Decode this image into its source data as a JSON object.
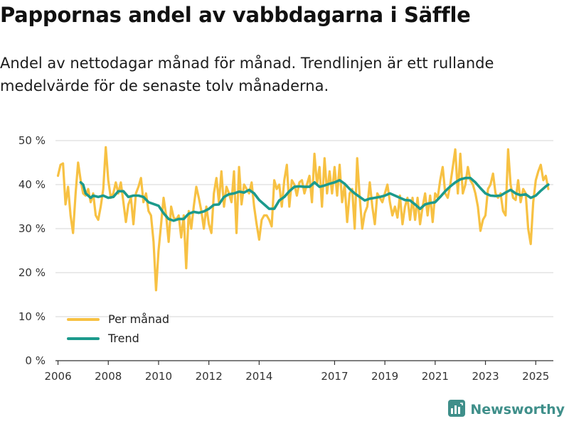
{
  "header": {
    "title": "Pappornas andel av vabbdagarna i Säffle",
    "subtitle": "Andel av nettodagar månad för månad. Trendlinjen är ett rullande medelvärde för de senaste tolv månaderna."
  },
  "brand": {
    "name": "Newsworthy",
    "icon": "newsworthy-logo-icon"
  },
  "colors": {
    "monthly": "#f7c143",
    "trend": "#1c9a8c",
    "grid": "#dddddd",
    "axis": "#333333"
  },
  "chart_data": {
    "type": "line",
    "title": "Pappornas andel av vabbdagarna i Säffle",
    "xlabel": "",
    "ylabel": "",
    "ylim": [
      0,
      50
    ],
    "xlim": [
      2005.9,
      2025.7
    ],
    "y_ticks": [
      0,
      10,
      20,
      30,
      40,
      50
    ],
    "y_tick_labels": [
      "0 %",
      "10 %",
      "20 %",
      "30 %",
      "40 %",
      "50 %"
    ],
    "x_ticks": [
      2006,
      2008,
      2010,
      2012,
      2014,
      2017,
      2019,
      2021,
      2023,
      2025
    ],
    "x_tick_labels": [
      "2006",
      "2008",
      "2010",
      "2012",
      "2014",
      "2017",
      "2019",
      "2021",
      "2023",
      "2025"
    ],
    "legend": {
      "position": "bottom-left",
      "entries": [
        "Per månad",
        "Trend"
      ]
    },
    "series": [
      {
        "name": "Per månad",
        "color": "#f7c143",
        "points": [
          [
            2006.0,
            42
          ],
          [
            2006.1,
            44.5
          ],
          [
            2006.2,
            44.8
          ],
          [
            2006.3,
            35.5
          ],
          [
            2006.4,
            39.5
          ],
          [
            2006.5,
            33
          ],
          [
            2006.6,
            29
          ],
          [
            2006.7,
            38
          ],
          [
            2006.8,
            45
          ],
          [
            2006.9,
            41
          ],
          [
            2007.0,
            38
          ],
          [
            2007.1,
            37.5
          ],
          [
            2007.2,
            39
          ],
          [
            2007.3,
            36
          ],
          [
            2007.4,
            38
          ],
          [
            2007.5,
            33
          ],
          [
            2007.6,
            32
          ],
          [
            2007.7,
            35
          ],
          [
            2007.8,
            39
          ],
          [
            2007.9,
            48.5
          ],
          [
            2008.0,
            41
          ],
          [
            2008.1,
            37
          ],
          [
            2008.2,
            38
          ],
          [
            2008.3,
            40.5
          ],
          [
            2008.4,
            38
          ],
          [
            2008.5,
            40.5
          ],
          [
            2008.6,
            36
          ],
          [
            2008.7,
            31.5
          ],
          [
            2008.8,
            35.5
          ],
          [
            2008.9,
            37
          ],
          [
            2009.0,
            31
          ],
          [
            2009.1,
            38
          ],
          [
            2009.2,
            39.5
          ],
          [
            2009.3,
            41.5
          ],
          [
            2009.4,
            36
          ],
          [
            2009.5,
            38
          ],
          [
            2009.6,
            34
          ],
          [
            2009.7,
            33
          ],
          [
            2009.8,
            27
          ],
          [
            2009.9,
            16
          ],
          [
            2010.0,
            25
          ],
          [
            2010.1,
            31
          ],
          [
            2010.2,
            37
          ],
          [
            2010.3,
            33
          ],
          [
            2010.4,
            27
          ],
          [
            2010.5,
            35
          ],
          [
            2010.6,
            32.5
          ],
          [
            2010.7,
            32
          ],
          [
            2010.8,
            33
          ],
          [
            2010.9,
            28
          ],
          [
            2011.0,
            33
          ],
          [
            2011.1,
            21
          ],
          [
            2011.2,
            34
          ],
          [
            2011.3,
            30
          ],
          [
            2011.4,
            35
          ],
          [
            2011.5,
            39.5
          ],
          [
            2011.6,
            37
          ],
          [
            2011.7,
            34
          ],
          [
            2011.8,
            30
          ],
          [
            2011.9,
            35
          ],
          [
            2012.0,
            31
          ],
          [
            2012.1,
            29
          ],
          [
            2012.2,
            38
          ],
          [
            2012.3,
            41.5
          ],
          [
            2012.4,
            36
          ],
          [
            2012.5,
            43
          ],
          [
            2012.6,
            35
          ],
          [
            2012.7,
            39.5
          ],
          [
            2012.8,
            38
          ],
          [
            2012.9,
            36
          ],
          [
            2013.0,
            43
          ],
          [
            2013.1,
            29
          ],
          [
            2013.2,
            44
          ],
          [
            2013.3,
            35.5
          ],
          [
            2013.4,
            40
          ],
          [
            2013.5,
            39
          ],
          [
            2013.6,
            38
          ],
          [
            2013.7,
            40.5
          ],
          [
            2013.8,
            35
          ],
          [
            2013.9,
            31
          ],
          [
            2014.0,
            27.5
          ],
          [
            2014.1,
            32
          ],
          [
            2014.2,
            33
          ],
          [
            2014.3,
            33
          ],
          [
            2014.4,
            32
          ],
          [
            2014.5,
            30.5
          ],
          [
            2014.6,
            41
          ],
          [
            2014.7,
            39
          ],
          [
            2014.8,
            40
          ],
          [
            2014.9,
            35
          ],
          [
            2015.0,
            41
          ],
          [
            2015.1,
            44.5
          ],
          [
            2015.2,
            35
          ],
          [
            2015.3,
            41
          ],
          [
            2015.4,
            40
          ],
          [
            2015.5,
            37.5
          ],
          [
            2015.6,
            40.5
          ],
          [
            2015.7,
            41
          ],
          [
            2015.8,
            38
          ],
          [
            2015.9,
            40
          ],
          [
            2016.0,
            42
          ],
          [
            2016.1,
            36
          ],
          [
            2016.2,
            47
          ],
          [
            2016.3,
            40
          ],
          [
            2016.4,
            44
          ],
          [
            2016.5,
            35
          ],
          [
            2016.6,
            46
          ],
          [
            2016.7,
            38
          ],
          [
            2016.8,
            43
          ],
          [
            2016.9,
            38
          ],
          [
            2017.0,
            44
          ],
          [
            2017.1,
            37.5
          ],
          [
            2017.2,
            44.5
          ],
          [
            2017.3,
            36
          ],
          [
            2017.4,
            40
          ],
          [
            2017.5,
            31.5
          ],
          [
            2017.6,
            38
          ],
          [
            2017.7,
            39
          ],
          [
            2017.8,
            30
          ],
          [
            2017.9,
            46
          ],
          [
            2018.0,
            37
          ],
          [
            2018.1,
            30
          ],
          [
            2018.2,
            33.5
          ],
          [
            2018.3,
            35
          ],
          [
            2018.4,
            40.5
          ],
          [
            2018.5,
            35
          ],
          [
            2018.6,
            31
          ],
          [
            2018.7,
            38
          ],
          [
            2018.8,
            37
          ],
          [
            2018.9,
            36
          ],
          [
            2019.0,
            38
          ],
          [
            2019.1,
            40
          ],
          [
            2019.2,
            36
          ],
          [
            2019.3,
            33
          ],
          [
            2019.4,
            35
          ],
          [
            2019.5,
            32.5
          ],
          [
            2019.6,
            37.5
          ],
          [
            2019.7,
            31
          ],
          [
            2019.8,
            35
          ],
          [
            2019.9,
            37
          ],
          [
            2020.0,
            32
          ],
          [
            2020.1,
            37
          ],
          [
            2020.2,
            32
          ],
          [
            2020.3,
            37
          ],
          [
            2020.4,
            31
          ],
          [
            2020.5,
            35
          ],
          [
            2020.6,
            38
          ],
          [
            2020.7,
            33
          ],
          [
            2020.8,
            37.5
          ],
          [
            2020.9,
            31.5
          ],
          [
            2021.0,
            38
          ],
          [
            2021.1,
            37
          ],
          [
            2021.2,
            41
          ],
          [
            2021.3,
            44
          ],
          [
            2021.4,
            38
          ],
          [
            2021.5,
            37
          ],
          [
            2021.6,
            40
          ],
          [
            2021.7,
            44
          ],
          [
            2021.8,
            48
          ],
          [
            2021.9,
            38
          ],
          [
            2022.0,
            47
          ],
          [
            2022.1,
            38
          ],
          [
            2022.2,
            40
          ],
          [
            2022.3,
            44
          ],
          [
            2022.4,
            41
          ],
          [
            2022.5,
            40
          ],
          [
            2022.6,
            38
          ],
          [
            2022.7,
            35
          ],
          [
            2022.8,
            29.5
          ],
          [
            2022.9,
            32
          ],
          [
            2023.0,
            33
          ],
          [
            2023.1,
            39
          ],
          [
            2023.2,
            40
          ],
          [
            2023.3,
            42.5
          ],
          [
            2023.4,
            38
          ],
          [
            2023.5,
            37
          ],
          [
            2023.6,
            38
          ],
          [
            2023.7,
            34
          ],
          [
            2023.8,
            33
          ],
          [
            2023.9,
            48
          ],
          [
            2024.0,
            40
          ],
          [
            2024.1,
            37
          ],
          [
            2024.2,
            36.5
          ],
          [
            2024.3,
            41
          ],
          [
            2024.4,
            36
          ],
          [
            2024.5,
            39
          ],
          [
            2024.6,
            38
          ],
          [
            2024.7,
            30
          ],
          [
            2024.8,
            26.5
          ],
          [
            2024.9,
            36
          ],
          [
            2025.0,
            41
          ],
          [
            2025.1,
            43
          ],
          [
            2025.2,
            44.5
          ],
          [
            2025.3,
            41
          ],
          [
            2025.4,
            42
          ],
          [
            2025.5,
            39
          ]
        ]
      },
      {
        "name": "Trend",
        "color": "#1c9a8c",
        "points": [
          [
            2006.9,
            40.5
          ],
          [
            2007.0,
            40
          ],
          [
            2007.1,
            38
          ],
          [
            2007.2,
            37.5
          ],
          [
            2007.3,
            37
          ],
          [
            2007.4,
            37.5
          ],
          [
            2007.6,
            37.2
          ],
          [
            2007.8,
            37.5
          ],
          [
            2008.0,
            37
          ],
          [
            2008.2,
            37.2
          ],
          [
            2008.4,
            38.5
          ],
          [
            2008.6,
            38.5
          ],
          [
            2008.8,
            37.2
          ],
          [
            2009.0,
            37.5
          ],
          [
            2009.2,
            37.5
          ],
          [
            2009.4,
            37.2
          ],
          [
            2009.6,
            36
          ],
          [
            2009.8,
            35.6
          ],
          [
            2010.0,
            35.2
          ],
          [
            2010.2,
            33.5
          ],
          [
            2010.4,
            32.2
          ],
          [
            2010.6,
            31.8
          ],
          [
            2010.8,
            32.2
          ],
          [
            2011.0,
            32.2
          ],
          [
            2011.2,
            33.4
          ],
          [
            2011.4,
            33.8
          ],
          [
            2011.6,
            33.6
          ],
          [
            2011.8,
            33.9
          ],
          [
            2012.0,
            34.5
          ],
          [
            2012.2,
            35.4
          ],
          [
            2012.4,
            35.5
          ],
          [
            2012.6,
            37.2
          ],
          [
            2012.8,
            37.8
          ],
          [
            2013.0,
            38
          ],
          [
            2013.2,
            38.4
          ],
          [
            2013.4,
            38.2
          ],
          [
            2013.6,
            38.8
          ],
          [
            2013.8,
            38
          ],
          [
            2014.0,
            36.5
          ],
          [
            2014.2,
            35.5
          ],
          [
            2014.4,
            34.5
          ],
          [
            2014.6,
            34.5
          ],
          [
            2014.8,
            36.4
          ],
          [
            2015.0,
            37.2
          ],
          [
            2015.2,
            38.5
          ],
          [
            2015.4,
            39.5
          ],
          [
            2015.6,
            39.6
          ],
          [
            2015.8,
            39.5
          ],
          [
            2016.0,
            39.5
          ],
          [
            2016.2,
            40.5
          ],
          [
            2016.4,
            39.5
          ],
          [
            2016.6,
            39.8
          ],
          [
            2016.8,
            40.2
          ],
          [
            2017.0,
            40.5
          ],
          [
            2017.2,
            41
          ],
          [
            2017.4,
            40.2
          ],
          [
            2017.6,
            39
          ],
          [
            2017.8,
            38
          ],
          [
            2018.0,
            37.2
          ],
          [
            2018.2,
            36.4
          ],
          [
            2018.4,
            36.8
          ],
          [
            2018.6,
            37
          ],
          [
            2018.8,
            37.2
          ],
          [
            2019.0,
            37.5
          ],
          [
            2019.2,
            38
          ],
          [
            2019.4,
            37.5
          ],
          [
            2019.6,
            37
          ],
          [
            2019.8,
            36.5
          ],
          [
            2020.0,
            36.4
          ],
          [
            2020.2,
            35.5
          ],
          [
            2020.4,
            34.5
          ],
          [
            2020.6,
            35.5
          ],
          [
            2020.8,
            35.8
          ],
          [
            2021.0,
            36
          ],
          [
            2021.2,
            37.2
          ],
          [
            2021.4,
            38.5
          ],
          [
            2021.6,
            39.6
          ],
          [
            2021.8,
            40.5
          ],
          [
            2022.0,
            41.2
          ],
          [
            2022.2,
            41.5
          ],
          [
            2022.4,
            41.5
          ],
          [
            2022.6,
            40.5
          ],
          [
            2022.8,
            39.2
          ],
          [
            2023.0,
            38
          ],
          [
            2023.2,
            37.5
          ],
          [
            2023.4,
            37.4
          ],
          [
            2023.6,
            37.5
          ],
          [
            2023.8,
            38.2
          ],
          [
            2024.0,
            38.8
          ],
          [
            2024.2,
            38
          ],
          [
            2024.4,
            37.6
          ],
          [
            2024.6,
            37.8
          ],
          [
            2024.8,
            37
          ],
          [
            2025.0,
            37.5
          ],
          [
            2025.2,
            38.6
          ],
          [
            2025.4,
            39.6
          ],
          [
            2025.5,
            40
          ]
        ]
      }
    ]
  }
}
